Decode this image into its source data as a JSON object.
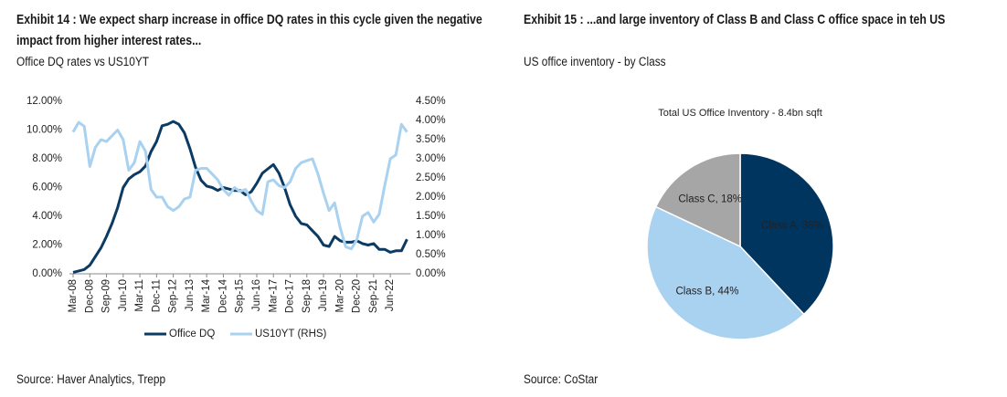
{
  "chart_data": [
    {
      "type": "line",
      "title": "Exhibit 14 : We expect sharp increase in office DQ rates in this cycle given the negative impact from higher interest rates...",
      "subtitle": "Office DQ rates vs US10YT",
      "source": "Source: Haver Analytics, Trepp",
      "categories": [
        "Mar-08",
        null,
        null,
        "Dec-08",
        null,
        null,
        "Sep-09",
        null,
        null,
        "Jun-10",
        null,
        null,
        "Mar-11",
        null,
        null,
        "Dec-11",
        null,
        null,
        "Sep-12",
        null,
        null,
        "Jun-13",
        null,
        null,
        "Mar-14",
        null,
        null,
        "Dec-14",
        null,
        null,
        "Sep-15",
        null,
        null,
        "Jun-16",
        null,
        null,
        "Mar-17",
        null,
        null,
        "Dec-17",
        null,
        null,
        "Sep-18",
        null,
        null,
        "Jun-19",
        null,
        null,
        "Mar-20",
        null,
        null,
        "Dec-20",
        null,
        null,
        "Sep-21",
        null,
        null,
        "Jun-22",
        null,
        null,
        null
      ],
      "series": [
        {
          "name": "Office DQ",
          "color": "#0b3a63",
          "values": [
            0.1,
            0.2,
            0.3,
            0.6,
            1.2,
            1.8,
            2.6,
            3.5,
            4.6,
            6.0,
            6.6,
            6.9,
            7.1,
            7.5,
            8.5,
            9.2,
            10.3,
            10.4,
            10.6,
            10.4,
            9.8,
            8.7,
            7.4,
            6.5,
            6.1,
            6.0,
            5.8,
            6.0,
            5.9,
            5.8,
            5.8,
            5.5,
            5.7,
            6.3,
            7.0,
            7.3,
            7.6,
            7.0,
            6.0,
            4.8,
            4.0,
            3.5,
            3.4,
            3.0,
            2.6,
            2.0,
            1.9,
            2.6,
            2.3,
            2.2,
            2.2,
            2.3,
            2.1,
            2.0,
            2.1,
            1.7,
            1.7,
            1.5,
            1.6,
            1.6,
            2.4
          ]
        },
        {
          "name": "US10YT (RHS)",
          "color": "#a9d1f0",
          "axis": "y2",
          "values": [
            3.7,
            3.95,
            3.85,
            2.8,
            3.3,
            3.5,
            3.45,
            3.6,
            3.75,
            3.5,
            2.7,
            2.9,
            3.45,
            3.2,
            2.2,
            2.0,
            2.0,
            1.75,
            1.65,
            1.75,
            1.95,
            2.0,
            2.7,
            2.75,
            2.75,
            2.6,
            2.45,
            2.2,
            2.05,
            2.25,
            2.15,
            2.2,
            1.9,
            1.65,
            1.55,
            2.4,
            2.45,
            2.3,
            2.25,
            2.4,
            2.75,
            2.9,
            2.95,
            3.0,
            2.6,
            2.1,
            1.65,
            1.85,
            1.2,
            0.7,
            0.65,
            0.9,
            1.5,
            1.6,
            1.35,
            1.55,
            2.3,
            3.0,
            3.1,
            3.9,
            3.7
          ]
        }
      ],
      "ylim": [
        0,
        12
      ],
      "yticks": [
        {
          "value": 0,
          "label": "0.00%"
        },
        {
          "value": 2,
          "label": "2.00%"
        },
        {
          "value": 4,
          "label": "4.00%"
        },
        {
          "value": 6,
          "label": "6.00%"
        },
        {
          "value": 8,
          "label": "8.00%"
        },
        {
          "value": 10,
          "label": "10.00%"
        },
        {
          "value": 12,
          "label": "12.00%"
        }
      ],
      "y2lim": [
        0,
        4.5
      ],
      "y2ticks": [
        {
          "value": 0,
          "label": "0.00%"
        },
        {
          "value": 0.5,
          "label": "0.50%"
        },
        {
          "value": 1,
          "label": "1.00%"
        },
        {
          "value": 1.5,
          "label": "1.50%"
        },
        {
          "value": 2,
          "label": "2.00%"
        },
        {
          "value": 2.5,
          "label": "2.50%"
        },
        {
          "value": 3,
          "label": "3.00%"
        },
        {
          "value": 3.5,
          "label": "3.50%"
        },
        {
          "value": 4,
          "label": "4.00%"
        },
        {
          "value": 4.5,
          "label": "4.50%"
        }
      ],
      "grid": false,
      "legend": "bottom"
    },
    {
      "type": "pie",
      "title": "Exhibit 15 : ...and large inventory of Class B and Class C office space in teh US",
      "subtitle": "US office inventory - by Class",
      "plot_title": "Total US Office Inventory - 8.4bn sqft",
      "source": "Source: CoStar",
      "categories": [
        "Class A",
        "Class B",
        "Class C"
      ],
      "values": [
        38,
        44,
        18
      ],
      "value_labels": [
        "Class A, 38%",
        "Class B, 44%",
        "Class C, 18%"
      ],
      "colors": [
        "#003560",
        "#a9d1f0",
        "#a6a6a6"
      ]
    }
  ]
}
